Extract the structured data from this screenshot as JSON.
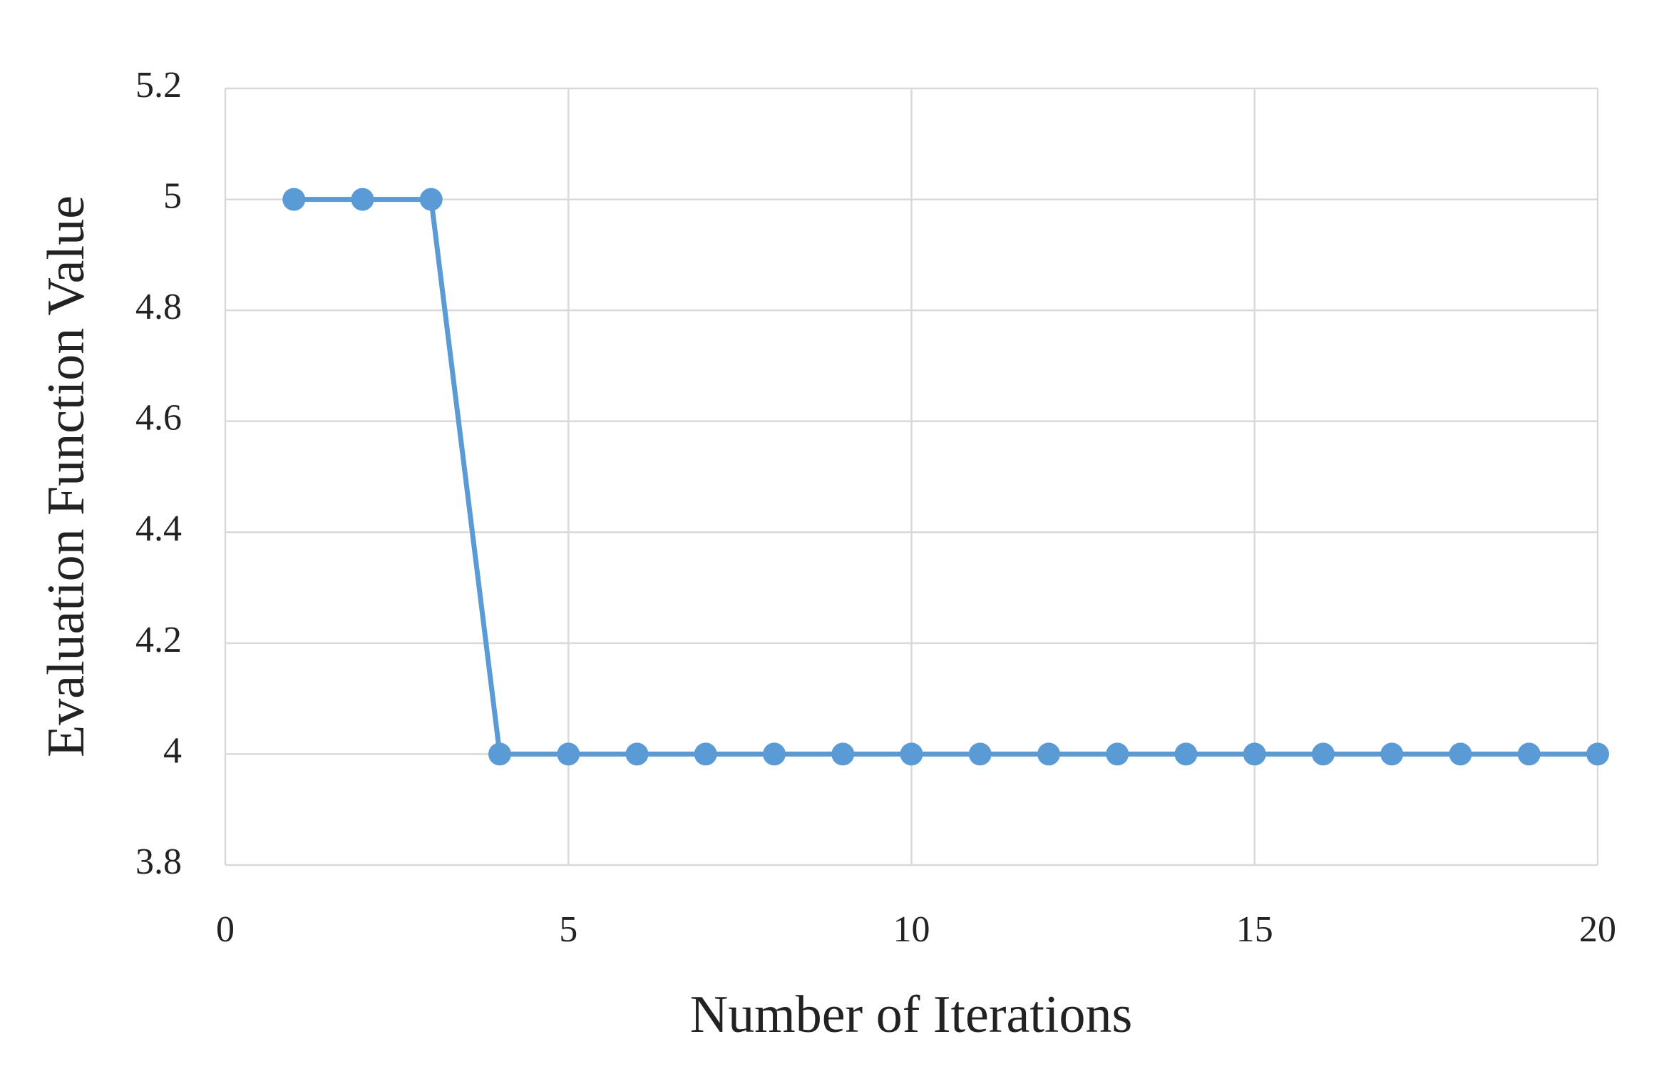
{
  "chart_data": {
    "type": "line",
    "x_label": "Number of Iterations",
    "y_label": "Evaluation Function Value",
    "x": [
      1,
      2,
      3,
      4,
      5,
      6,
      7,
      8,
      9,
      10,
      11,
      12,
      13,
      14,
      15,
      16,
      17,
      18,
      19,
      20
    ],
    "values": [
      5,
      5,
      5,
      4,
      4,
      4,
      4,
      4,
      4,
      4,
      4,
      4,
      4,
      4,
      4,
      4,
      4,
      4,
      4,
      4
    ],
    "color": "#5b9bd5",
    "xlim": [
      0,
      20
    ],
    "xticks": [
      0,
      5,
      10,
      15,
      20
    ],
    "ylim": [
      3.8,
      5.2
    ],
    "yticks": [
      3.8,
      4,
      4.2,
      4.4,
      4.6,
      4.8,
      5,
      5.2
    ],
    "grid": true
  }
}
